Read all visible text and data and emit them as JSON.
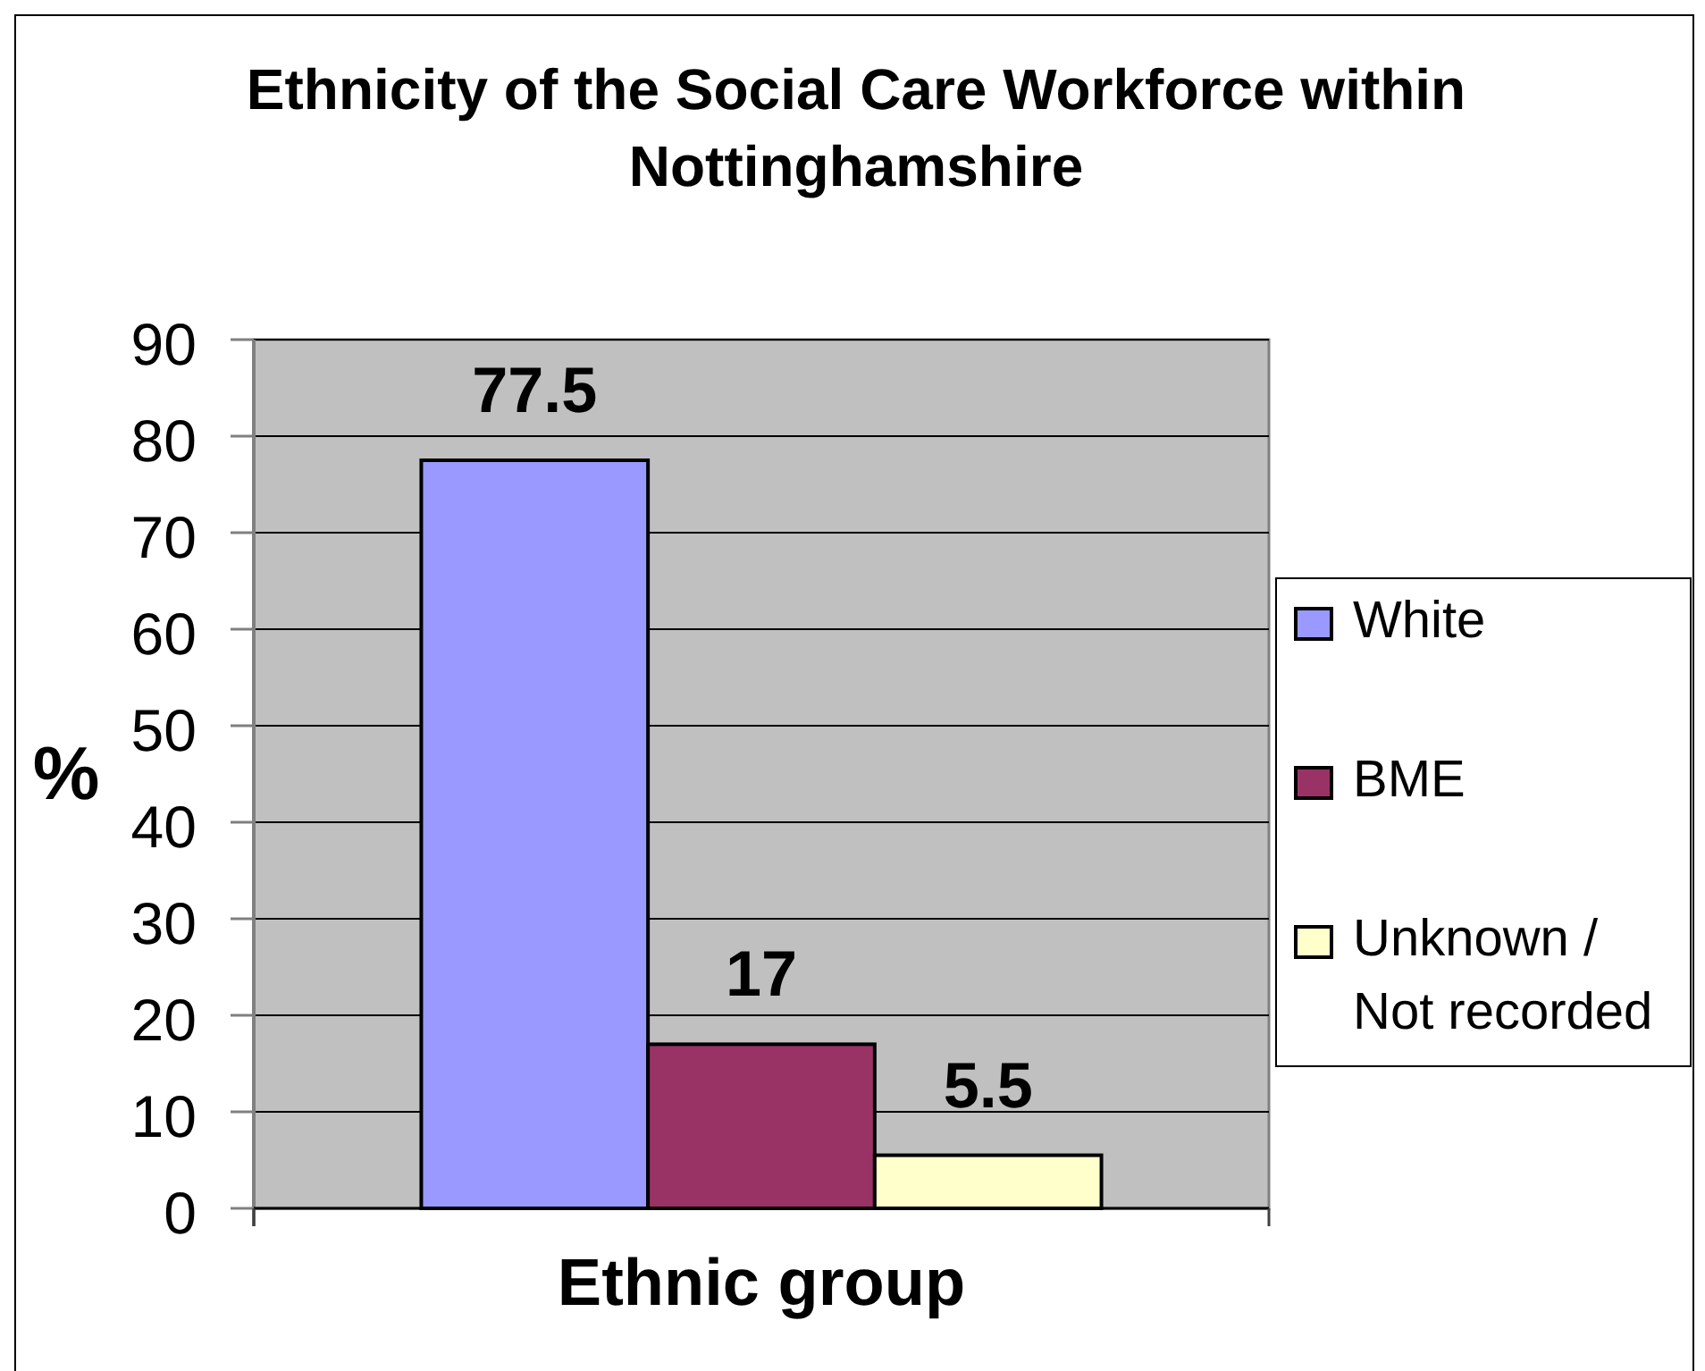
{
  "chart_data": {
    "type": "bar",
    "title": "Ethnicity of the Social Care Workforce within Nottinghamshire",
    "xlabel": "Ethnic group",
    "ylabel": "%",
    "categories": [
      null
    ],
    "series": [
      {
        "name": "White",
        "color": "#9999ff",
        "values": [
          77.5
        ]
      },
      {
        "name": "BME",
        "color": "#993366",
        "values": [
          17
        ]
      },
      {
        "name": "Unknown / Not recorded",
        "color": "#ffffcc",
        "values": [
          5.5
        ]
      }
    ],
    "ylim": [
      0,
      90
    ],
    "yticks": [
      0,
      10,
      20,
      30,
      40,
      50,
      60,
      70,
      80,
      90
    ],
    "grid": "y",
    "legend": "right",
    "data_labels": true
  }
}
